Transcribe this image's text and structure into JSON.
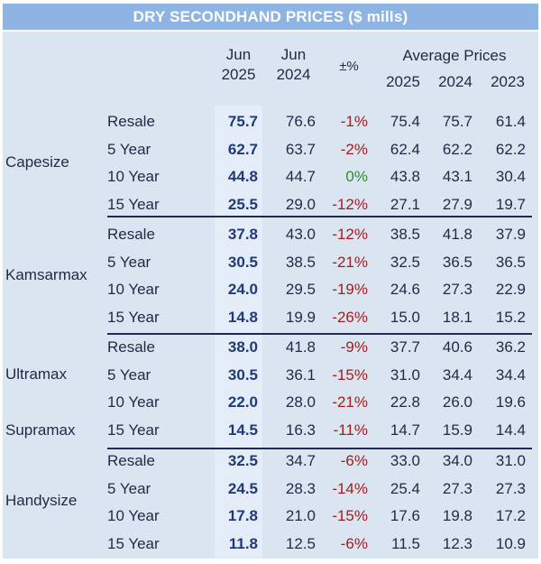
{
  "title": "DRY SECONDHAND PRICES ($ mills)",
  "headers": {
    "jun_2025": [
      "Jun",
      "2025"
    ],
    "jun_2024": [
      "Jun",
      "2024"
    ],
    "change": "±%",
    "avg_group": "Average Prices",
    "avg_years": [
      "2025",
      "2024",
      "2023"
    ]
  },
  "segments": [
    {
      "name": "Capesize",
      "rows": [
        {
          "age": "Resale",
          "jun2025": "75.7",
          "jun2024": "76.6",
          "chg": "-1%",
          "avg2025": "75.4",
          "avg2024": "75.7",
          "avg2023": "61.4"
        },
        {
          "age": "5 Year",
          "jun2025": "62.7",
          "jun2024": "63.7",
          "chg": "-2%",
          "avg2025": "62.4",
          "avg2024": "62.2",
          "avg2023": "62.2"
        },
        {
          "age": "10 Year",
          "jun2025": "44.8",
          "jun2024": "44.7",
          "chg": "0%",
          "avg2025": "43.8",
          "avg2024": "43.1",
          "avg2023": "30.4"
        },
        {
          "age": "15 Year",
          "jun2025": "25.5",
          "jun2024": "29.0",
          "chg": "-12%",
          "avg2025": "27.1",
          "avg2024": "27.9",
          "avg2023": "19.7"
        }
      ]
    },
    {
      "name": "Kamsarmax",
      "rows": [
        {
          "age": "Resale",
          "jun2025": "37.8",
          "jun2024": "43.0",
          "chg": "-12%",
          "avg2025": "38.5",
          "avg2024": "41.8",
          "avg2023": "37.9"
        },
        {
          "age": "5 Year",
          "jun2025": "30.5",
          "jun2024": "38.5",
          "chg": "-21%",
          "avg2025": "32.5",
          "avg2024": "36.5",
          "avg2023": "36.5"
        },
        {
          "age": "10 Year",
          "jun2025": "24.0",
          "jun2024": "29.5",
          "chg": "-19%",
          "avg2025": "24.6",
          "avg2024": "27.3",
          "avg2023": "22.9"
        },
        {
          "age": "15 Year",
          "jun2025": "14.8",
          "jun2024": "19.9",
          "chg": "-26%",
          "avg2025": "15.0",
          "avg2024": "18.1",
          "avg2023": "15.2"
        }
      ]
    },
    {
      "name": "Ultramax",
      "name2": "Supramax",
      "rows": [
        {
          "age": "Resale",
          "jun2025": "38.0",
          "jun2024": "41.8",
          "chg": "-9%",
          "avg2025": "37.7",
          "avg2024": "40.6",
          "avg2023": "36.2"
        },
        {
          "age": "5 Year",
          "jun2025": "30.5",
          "jun2024": "36.1",
          "chg": "-15%",
          "avg2025": "31.0",
          "avg2024": "34.4",
          "avg2023": "34.4"
        },
        {
          "age": "10 Year",
          "jun2025": "22.0",
          "jun2024": "28.0",
          "chg": "-21%",
          "avg2025": "22.8",
          "avg2024": "26.0",
          "avg2023": "19.6"
        },
        {
          "age": "15 Year",
          "jun2025": "14.5",
          "jun2024": "16.3",
          "chg": "-11%",
          "avg2025": "14.7",
          "avg2024": "15.9",
          "avg2023": "14.4"
        }
      ]
    },
    {
      "name": "Handysize",
      "rows": [
        {
          "age": "Resale",
          "jun2025": "32.5",
          "jun2024": "34.7",
          "chg": "-6%",
          "avg2025": "33.0",
          "avg2024": "34.0",
          "avg2023": "31.0"
        },
        {
          "age": "5 Year",
          "jun2025": "24.5",
          "jun2024": "28.3",
          "chg": "-14%",
          "avg2025": "25.4",
          "avg2024": "27.3",
          "avg2023": "27.3"
        },
        {
          "age": "10 Year",
          "jun2025": "17.8",
          "jun2024": "21.0",
          "chg": "-15%",
          "avg2025": "17.6",
          "avg2024": "19.8",
          "avg2023": "17.2"
        },
        {
          "age": "15 Year",
          "jun2025": "11.8",
          "jun2024": "12.5",
          "chg": "-6%",
          "avg2025": "11.5",
          "avg2024": "12.3",
          "avg2023": "10.9"
        }
      ]
    }
  ],
  "colors": {
    "title_bg": "#8eb4e3",
    "panel_bg": "#dbe5f1",
    "negative": "#a11d1d",
    "zero": "#2e8b2e",
    "bold_value": "#1f3a7a"
  }
}
